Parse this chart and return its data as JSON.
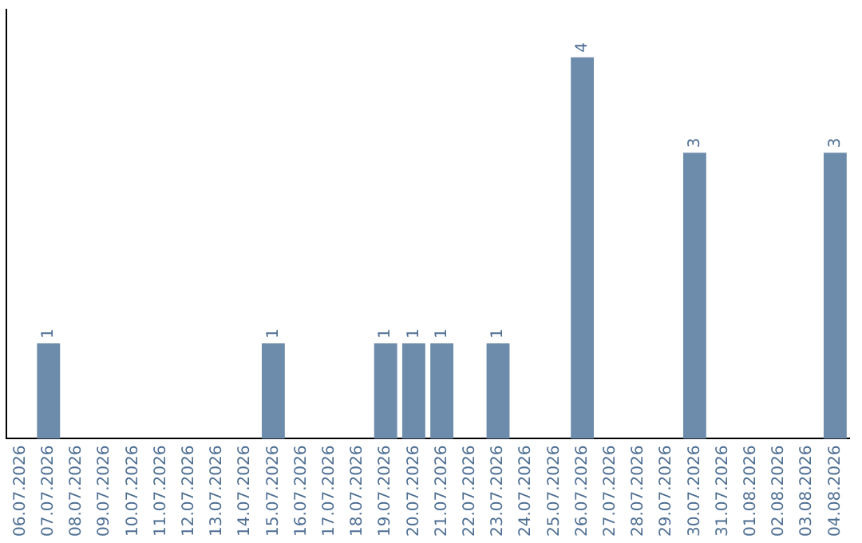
{
  "chart_data": {
    "type": "bar",
    "categories": [
      "06.07.2026",
      "07.07.2026",
      "08.07.2026",
      "09.07.2026",
      "10.07.2026",
      "11.07.2026",
      "12.07.2026",
      "13.07.2026",
      "14.07.2026",
      "15.07.2026",
      "16.07.2026",
      "17.07.2026",
      "18.07.2026",
      "19.07.2026",
      "20.07.2026",
      "21.07.2026",
      "22.07.2026",
      "23.07.2026",
      "24.07.2026",
      "25.07.2026",
      "26.07.2026",
      "27.07.2026",
      "28.07.2026",
      "29.07.2026",
      "30.07.2026",
      "31.07.2026",
      "01.08.2026",
      "02.08.2026",
      "03.08.2026",
      "04.08.2026"
    ],
    "values": [
      0,
      1,
      0,
      0,
      0,
      0,
      0,
      0,
      0,
      1,
      0,
      0,
      0,
      1,
      1,
      1,
      0,
      1,
      0,
      0,
      4,
      0,
      0,
      0,
      3,
      0,
      0,
      0,
      0,
      3
    ],
    "value_labels": [
      null,
      "1",
      null,
      null,
      null,
      null,
      null,
      null,
      null,
      "1",
      null,
      null,
      null,
      "1",
      "1",
      "1",
      null,
      "1",
      null,
      null,
      "4",
      null,
      null,
      null,
      "3",
      null,
      null,
      null,
      null,
      "3"
    ],
    "color": "#6d8cab",
    "tick_labels": "x",
    "grid": false,
    "legend": false
  }
}
